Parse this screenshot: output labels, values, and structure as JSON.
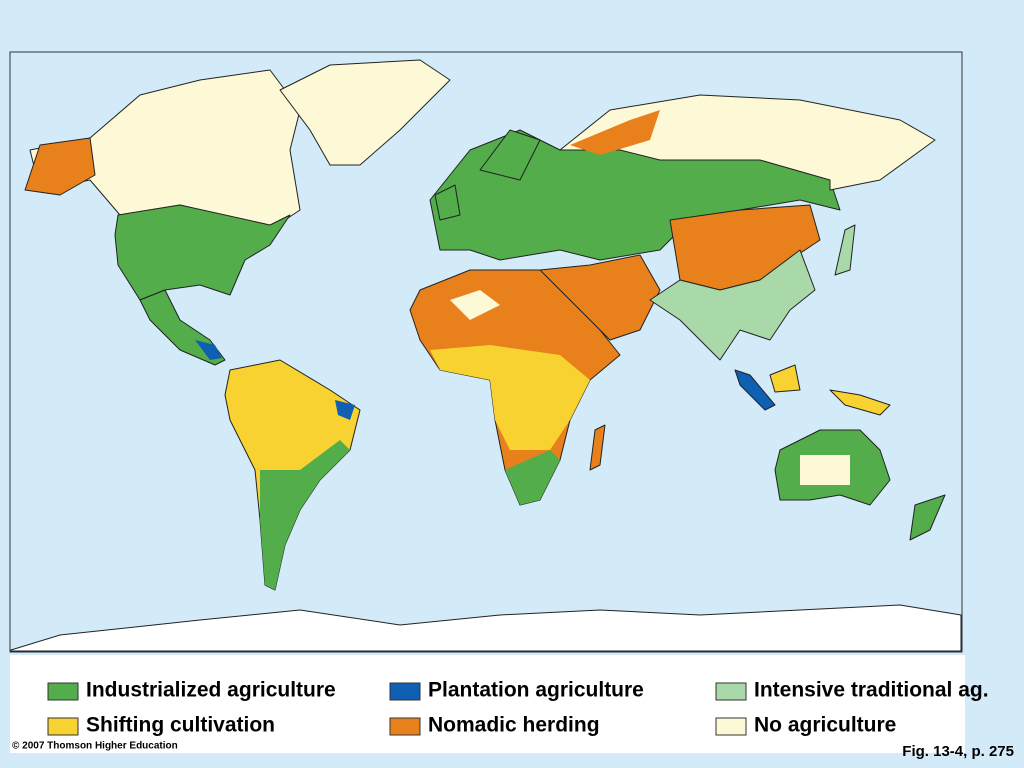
{
  "legend": {
    "items": [
      {
        "label": "Industrialized agriculture",
        "color": "#52ad4a"
      },
      {
        "label": "Plantation agriculture",
        "color": "#0f5fb3"
      },
      {
        "label": "Intensive traditional ag.",
        "color": "#a9d9a9"
      },
      {
        "label": "Shifting cultivation",
        "color": "#f7d230"
      },
      {
        "label": "Nomadic herding",
        "color": "#e8801c"
      },
      {
        "label": "No agriculture",
        "color": "#fdf9d6"
      }
    ]
  },
  "copyright": "© 2007 Thomson Higher Education",
  "caption": "Fig. 13-4, p. 275"
}
